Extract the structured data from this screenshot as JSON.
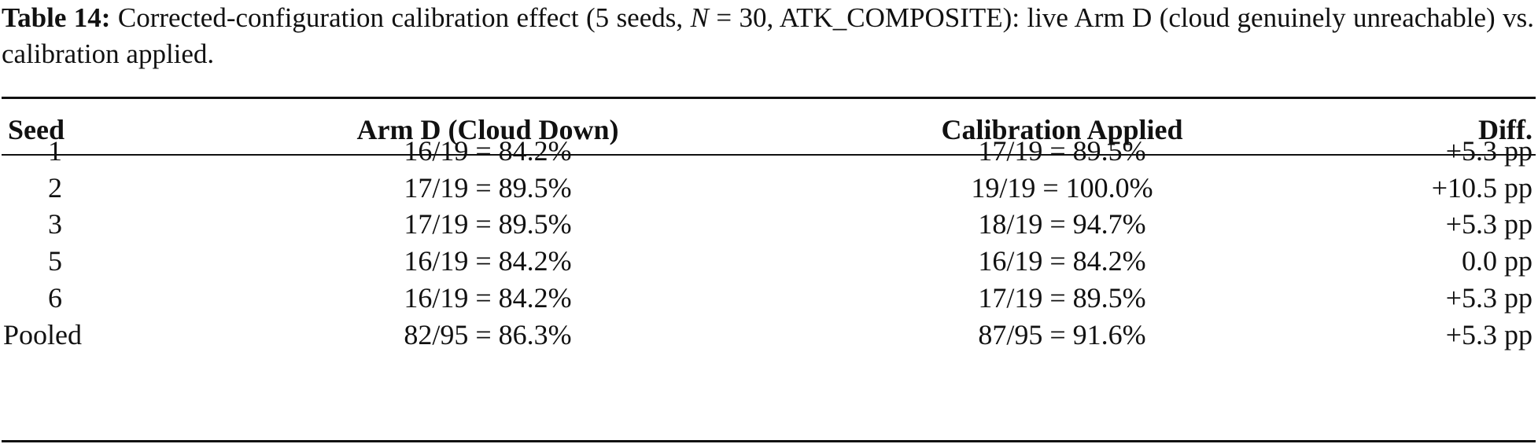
{
  "caption": {
    "label": "Table 14:",
    "text_before_n": " Corrected-configuration calibration effect (5 seeds, ",
    "n_symbol": "N",
    "text_after_n": " = 30, ATK_COMPOSITE): live Arm D (cloud genuinely unreachable) vs. calibration applied."
  },
  "table": {
    "headers": {
      "seed": "Seed",
      "arm_d": "Arm D (Cloud Down)",
      "calibration": "Calibration Applied",
      "diff": "Diff."
    },
    "rows": [
      {
        "seed": "1",
        "arm_d": "16/19 = 84.2%",
        "calibration": "17/19 = 89.5%",
        "diff": "+5.3 pp"
      },
      {
        "seed": "2",
        "arm_d": "17/19 = 89.5%",
        "calibration": "19/19 = 100.0%",
        "diff": "+10.5 pp"
      },
      {
        "seed": "3",
        "arm_d": "17/19 = 89.5%",
        "calibration": "18/19 = 94.7%",
        "diff": "+5.3 pp"
      },
      {
        "seed": "5",
        "arm_d": "16/19 = 84.2%",
        "calibration": "16/19 = 84.2%",
        "diff": "0.0 pp"
      },
      {
        "seed": "6",
        "arm_d": "16/19 = 84.2%",
        "calibration": "17/19 = 89.5%",
        "diff": "+5.3 pp"
      },
      {
        "seed": "Pooled",
        "arm_d": "82/95 = 86.3%",
        "calibration": "87/95 = 91.6%",
        "diff": "+5.3 pp"
      }
    ]
  }
}
